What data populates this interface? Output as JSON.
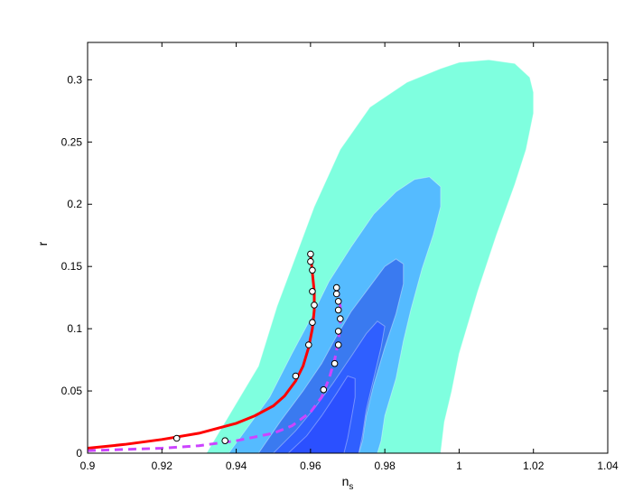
{
  "chart_data": {
    "type": "contour",
    "xlabel": "n_s",
    "ylabel": "r",
    "xlim": [
      0.9,
      1.04
    ],
    "ylim": [
      0,
      0.33
    ],
    "x_ticks": [
      0.9,
      0.92,
      0.94,
      0.96,
      0.98,
      1.0,
      1.02,
      1.04
    ],
    "x_tick_labels": [
      "0.9",
      "0.92",
      "0.94",
      "0.96",
      "0.98",
      "1",
      "1.02",
      "1.04"
    ],
    "y_ticks": [
      0,
      0.05,
      0.1,
      0.15,
      0.2,
      0.25,
      0.3
    ],
    "y_tick_labels": [
      "0",
      "0.05",
      "0.1",
      "0.15",
      "0.2",
      "0.25",
      "0.3"
    ],
    "grid": false,
    "contours": [
      {
        "color": "#7fffdf",
        "points": [
          [
            0.932,
            0
          ],
          [
            0.946,
            0.07
          ],
          [
            0.951,
            0.118
          ],
          [
            0.955,
            0.15
          ],
          [
            0.961,
            0.198
          ],
          [
            0.968,
            0.244
          ],
          [
            0.976,
            0.278
          ],
          [
            0.986,
            0.298
          ],
          [
            0.995,
            0.309
          ],
          [
            1.0,
            0.314
          ],
          [
            1.008,
            0.316
          ],
          [
            1.015,
            0.313
          ],
          [
            1.019,
            0.302
          ],
          [
            1.02,
            0.29
          ],
          [
            1.02,
            0.273
          ],
          [
            1.018,
            0.244
          ],
          [
            1.015,
            0.216
          ],
          [
            1.01,
            0.175
          ],
          [
            1.005,
            0.13
          ],
          [
            1.0,
            0.08
          ],
          [
            0.998,
            0.05
          ],
          [
            0.996,
            0.025
          ],
          [
            0.995,
            0
          ]
        ]
      },
      {
        "color": "#55bbff",
        "points": [
          [
            0.938,
            0
          ],
          [
            0.949,
            0.045
          ],
          [
            0.955,
            0.08
          ],
          [
            0.96,
            0.108
          ],
          [
            0.965,
            0.138
          ],
          [
            0.971,
            0.166
          ],
          [
            0.977,
            0.192
          ],
          [
            0.983,
            0.21
          ],
          [
            0.988,
            0.22
          ],
          [
            0.992,
            0.222
          ],
          [
            0.995,
            0.214
          ],
          [
            0.995,
            0.198
          ],
          [
            0.993,
            0.175
          ],
          [
            0.99,
            0.148
          ],
          [
            0.987,
            0.115
          ],
          [
            0.985,
            0.09
          ],
          [
            0.983,
            0.06
          ],
          [
            0.98,
            0.03
          ],
          [
            0.979,
            0.01
          ],
          [
            0.978,
            0
          ]
        ]
      },
      {
        "color": "#3a7af0",
        "points": [
          [
            0.946,
            0
          ],
          [
            0.952,
            0.026
          ],
          [
            0.958,
            0.05
          ],
          [
            0.963,
            0.072
          ],
          [
            0.967,
            0.094
          ],
          [
            0.971,
            0.114
          ],
          [
            0.976,
            0.134
          ],
          [
            0.98,
            0.15
          ],
          [
            0.983,
            0.156
          ],
          [
            0.985,
            0.152
          ],
          [
            0.985,
            0.136
          ],
          [
            0.983,
            0.112
          ],
          [
            0.98,
            0.085
          ],
          [
            0.977,
            0.055
          ],
          [
            0.975,
            0.03
          ],
          [
            0.974,
            0.01
          ],
          [
            0.973,
            0
          ]
        ]
      },
      {
        "color": "#2f5fff",
        "points": [
          [
            0.95,
            0
          ],
          [
            0.956,
            0.018
          ],
          [
            0.961,
            0.036
          ],
          [
            0.966,
            0.056
          ],
          [
            0.971,
            0.078
          ],
          [
            0.975,
            0.096
          ],
          [
            0.978,
            0.106
          ],
          [
            0.98,
            0.102
          ],
          [
            0.979,
            0.085
          ],
          [
            0.977,
            0.06
          ],
          [
            0.975,
            0.035
          ],
          [
            0.974,
            0.015
          ],
          [
            0.973,
            0
          ]
        ]
      },
      {
        "color": "#2b50ff",
        "points": [
          [
            0.954,
            0
          ],
          [
            0.959,
            0.014
          ],
          [
            0.963,
            0.03
          ],
          [
            0.967,
            0.048
          ],
          [
            0.97,
            0.062
          ],
          [
            0.972,
            0.06
          ],
          [
            0.972,
            0.045
          ],
          [
            0.971,
            0.028
          ],
          [
            0.97,
            0.012
          ],
          [
            0.969,
            0
          ]
        ]
      }
    ],
    "series": [
      {
        "style": "solid",
        "color": "#ff0000",
        "x": [
          0.9,
          0.91,
          0.92,
          0.93,
          0.94,
          0.945,
          0.95,
          0.953,
          0.956,
          0.958,
          0.9595,
          0.9605,
          0.961,
          0.961,
          0.9605,
          0.96
        ],
        "y": [
          0.004,
          0.007,
          0.011,
          0.016,
          0.024,
          0.03,
          0.038,
          0.046,
          0.058,
          0.07,
          0.085,
          0.1,
          0.115,
          0.13,
          0.145,
          0.16
        ],
        "markers_x": [
          0.924,
          0.956,
          0.9595,
          0.9605,
          0.961,
          0.9605,
          0.9605,
          0.96,
          0.96
        ],
        "markers_y": [
          0.012,
          0.062,
          0.087,
          0.105,
          0.119,
          0.13,
          0.147,
          0.154,
          0.16
        ]
      },
      {
        "style": "dashed",
        "color": "#cc44ff",
        "x": [
          0.9,
          0.92,
          0.93,
          0.94,
          0.95,
          0.955,
          0.96,
          0.963,
          0.965,
          0.9665,
          0.9675,
          0.968,
          0.968,
          0.9675,
          0.967
        ],
        "y": [
          0.002,
          0.004,
          0.006,
          0.01,
          0.016,
          0.022,
          0.033,
          0.045,
          0.06,
          0.075,
          0.09,
          0.105,
          0.118,
          0.127,
          0.133
        ],
        "markers_x": [
          0.937,
          0.9635,
          0.9665,
          0.9675,
          0.9675,
          0.968,
          0.9675,
          0.9675,
          0.967,
          0.967
        ],
        "markers_y": [
          0.01,
          0.051,
          0.072,
          0.087,
          0.098,
          0.108,
          0.115,
          0.122,
          0.128,
          0.133
        ]
      }
    ]
  }
}
